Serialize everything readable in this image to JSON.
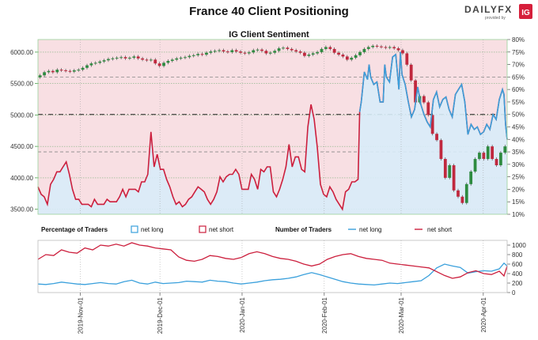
{
  "title": "France 40 Client Positioning",
  "brand": {
    "name": "DAILYFX",
    "tagline": "provided by",
    "ig": "IG"
  },
  "chart_data": {
    "type": "line",
    "subtitle": "IG Client Sentiment",
    "price_axis": {
      "ticks": [
        "6000.00",
        "5500.00",
        "5000.00",
        "4500.00",
        "4000.00",
        "3500.00"
      ],
      "ylim": [
        3420,
        6200
      ]
    },
    "pct_axis": {
      "ticks": [
        "80%",
        "75%",
        "70%",
        "65%",
        "60%",
        "55%",
        "50%",
        "45%",
        "40%",
        "35%",
        "30%",
        "25%",
        "20%",
        "15%",
        "10%"
      ],
      "ylim": [
        10,
        80
      ]
    },
    "date_ticks": [
      "2019-Nov-01",
      "2019-Dec-01",
      "2020-Jan-01",
      "2020-Feb-01",
      "2020-Mar-01",
      "2020-Apr-01"
    ],
    "x_range": [
      "2019-Oct-16",
      "2020-Apr-10"
    ],
    "candles_close": [
      5630,
      5680,
      5700,
      5680,
      5720,
      5710,
      5700,
      5690,
      5710,
      5720,
      5750,
      5790,
      5820,
      5830,
      5850,
      5870,
      5890,
      5900,
      5910,
      5920,
      5900,
      5910,
      5930,
      5900,
      5880,
      5870,
      5880,
      5820,
      5780,
      5830,
      5860,
      5880,
      5900,
      5910,
      5920,
      5940,
      5950,
      5970,
      5960,
      5990,
      6010,
      6020,
      6030,
      6010,
      6000,
      6030,
      6010,
      5990,
      5980,
      5995,
      6030,
      6040,
      6020,
      5980,
      5990,
      6020,
      6060,
      6070,
      6050,
      6030,
      6010,
      5990,
      5940,
      5960,
      5980,
      6000,
      6050,
      6080,
      6050,
      5990,
      5960,
      5930,
      5880,
      5910,
      5950,
      6000,
      6050,
      6080,
      6100,
      6090,
      6080,
      6070,
      6080,
      6060,
      6030,
      5980,
      5800,
      5550,
      5200,
      5300,
      5200,
      5000,
      4700,
      4600,
      4300,
      4000,
      4200,
      3800,
      3700,
      3600,
      3900,
      4100,
      4300,
      4400,
      4300,
      4500,
      4300,
      4200,
      4400,
      4500
    ],
    "sentiment_pct_long": [
      [
        0,
        21
      ],
      [
        2,
        18
      ],
      [
        4,
        17
      ],
      [
        6,
        14
      ],
      [
        8,
        22
      ],
      [
        10,
        24
      ],
      [
        12,
        27
      ],
      [
        14,
        27
      ],
      [
        16,
        29
      ],
      [
        18,
        31
      ],
      [
        20,
        26
      ],
      [
        22,
        20
      ],
      [
        24,
        16
      ],
      [
        26,
        16
      ],
      [
        28,
        14
      ],
      [
        30,
        14
      ],
      [
        32,
        14
      ],
      [
        34,
        13
      ],
      [
        36,
        16
      ],
      [
        38,
        14
      ],
      [
        40,
        14
      ],
      [
        42,
        14
      ],
      [
        44,
        16
      ],
      [
        46,
        15
      ],
      [
        48,
        15
      ],
      [
        50,
        15
      ],
      [
        52,
        17
      ],
      [
        54,
        20
      ],
      [
        56,
        17
      ],
      [
        58,
        20
      ],
      [
        60,
        20
      ],
      [
        62,
        20
      ],
      [
        64,
        19
      ],
      [
        66,
        23
      ],
      [
        68,
        23
      ],
      [
        70,
        26
      ],
      [
        72,
        43
      ],
      [
        74,
        29
      ],
      [
        76,
        34
      ],
      [
        78,
        28
      ],
      [
        80,
        28
      ],
      [
        82,
        24
      ],
      [
        84,
        21
      ],
      [
        86,
        17
      ],
      [
        88,
        14
      ],
      [
        90,
        15
      ],
      [
        92,
        13
      ],
      [
        94,
        14
      ],
      [
        96,
        16
      ],
      [
        98,
        17
      ],
      [
        100,
        19
      ],
      [
        102,
        21
      ],
      [
        104,
        20
      ],
      [
        106,
        19
      ],
      [
        108,
        16
      ],
      [
        110,
        14
      ],
      [
        112,
        16
      ],
      [
        114,
        19
      ],
      [
        116,
        25
      ],
      [
        118,
        23
      ],
      [
        120,
        25
      ],
      [
        122,
        26
      ],
      [
        124,
        26
      ],
      [
        126,
        28
      ],
      [
        128,
        26
      ],
      [
        130,
        20
      ],
      [
        132,
        20
      ],
      [
        134,
        20
      ],
      [
        136,
        26
      ],
      [
        138,
        24
      ],
      [
        140,
        20
      ],
      [
        142,
        28
      ],
      [
        144,
        27
      ],
      [
        146,
        29
      ],
      [
        148,
        29
      ],
      [
        150,
        19
      ],
      [
        152,
        17
      ],
      [
        154,
        20
      ],
      [
        156,
        24
      ],
      [
        158,
        29
      ],
      [
        160,
        38
      ],
      [
        162,
        29
      ],
      [
        164,
        33
      ],
      [
        166,
        33
      ],
      [
        168,
        28
      ],
      [
        170,
        27
      ],
      [
        172,
        45
      ],
      [
        174,
        54
      ],
      [
        176,
        48
      ],
      [
        178,
        37
      ],
      [
        180,
        22
      ],
      [
        182,
        18
      ],
      [
        184,
        17
      ],
      [
        186,
        21
      ],
      [
        188,
        19
      ],
      [
        190,
        16
      ],
      [
        192,
        14
      ],
      [
        194,
        12
      ],
      [
        196,
        19
      ],
      [
        198,
        20
      ],
      [
        200,
        23
      ],
      [
        202,
        23
      ],
      [
        204,
        24
      ],
      [
        205,
        51
      ],
      [
        206,
        55
      ],
      [
        208,
        67
      ],
      [
        210,
        64
      ],
      [
        211,
        70
      ],
      [
        212,
        65
      ],
      [
        214,
        62
      ],
      [
        216,
        63
      ],
      [
        218,
        55
      ],
      [
        220,
        55
      ],
      [
        221,
        70
      ],
      [
        222,
        65
      ],
      [
        224,
        63
      ],
      [
        226,
        73
      ],
      [
        228,
        74
      ],
      [
        230,
        60
      ],
      [
        231,
        75
      ],
      [
        232,
        66
      ],
      [
        234,
        62
      ],
      [
        236,
        55
      ],
      [
        238,
        49
      ],
      [
        240,
        52
      ],
      [
        242,
        61
      ],
      [
        244,
        54
      ],
      [
        246,
        50
      ],
      [
        248,
        47
      ],
      [
        250,
        45
      ],
      [
        252,
        56
      ],
      [
        254,
        59
      ],
      [
        256,
        53
      ],
      [
        258,
        56
      ],
      [
        260,
        57
      ],
      [
        262,
        52
      ],
      [
        264,
        49
      ],
      [
        266,
        58
      ],
      [
        268,
        60
      ],
      [
        270,
        62
      ],
      [
        272,
        55
      ],
      [
        274,
        42
      ],
      [
        276,
        46
      ],
      [
        278,
        44
      ],
      [
        280,
        45
      ],
      [
        282,
        42
      ],
      [
        284,
        43
      ],
      [
        286,
        46
      ],
      [
        288,
        44
      ],
      [
        290,
        50
      ],
      [
        292,
        48
      ],
      [
        294,
        56
      ],
      [
        296,
        60
      ],
      [
        297,
        58
      ],
      [
        298,
        46
      ],
      [
        299,
        40
      ]
    ],
    "legend_pct": {
      "label": "Percentage of Traders",
      "long": "net long",
      "short": "net short"
    },
    "legend_num": {
      "label": "Number of Traders",
      "long": "net long",
      "short": "net short"
    },
    "traders_axis": {
      "ticks": [
        "1000",
        "800",
        "600",
        "400",
        "200",
        "0"
      ],
      "ylim": [
        0,
        1100
      ]
    },
    "traders_long": [
      [
        0,
        180
      ],
      [
        10,
        170
      ],
      [
        20,
        190
      ],
      [
        30,
        220
      ],
      [
        40,
        200
      ],
      [
        50,
        180
      ],
      [
        60,
        170
      ],
      [
        70,
        190
      ],
      [
        80,
        210
      ],
      [
        90,
        190
      ],
      [
        100,
        180
      ],
      [
        110,
        230
      ],
      [
        120,
        260
      ],
      [
        130,
        200
      ],
      [
        140,
        180
      ],
      [
        150,
        220
      ],
      [
        160,
        190
      ],
      [
        170,
        200
      ],
      [
        180,
        210
      ],
      [
        190,
        240
      ],
      [
        200,
        230
      ],
      [
        210,
        220
      ],
      [
        220,
        260
      ],
      [
        230,
        240
      ],
      [
        240,
        230
      ],
      [
        250,
        200
      ],
      [
        260,
        180
      ],
      [
        270,
        200
      ],
      [
        280,
        220
      ],
      [
        290,
        250
      ],
      [
        300,
        270
      ],
      [
        310,
        280
      ],
      [
        320,
        300
      ],
      [
        330,
        330
      ],
      [
        340,
        380
      ],
      [
        350,
        420
      ],
      [
        360,
        380
      ],
      [
        370,
        330
      ],
      [
        380,
        280
      ],
      [
        390,
        230
      ],
      [
        400,
        200
      ],
      [
        410,
        180
      ],
      [
        420,
        170
      ],
      [
        430,
        160
      ],
      [
        440,
        180
      ],
      [
        450,
        200
      ],
      [
        460,
        190
      ],
      [
        470,
        210
      ],
      [
        480,
        230
      ],
      [
        490,
        250
      ],
      [
        500,
        360
      ],
      [
        510,
        520
      ],
      [
        520,
        600
      ],
      [
        530,
        560
      ],
      [
        540,
        530
      ],
      [
        550,
        410
      ],
      [
        560,
        440
      ],
      [
        570,
        460
      ],
      [
        580,
        450
      ],
      [
        590,
        500
      ],
      [
        596,
        620
      ],
      [
        600,
        560
      ]
    ],
    "traders_short": [
      [
        0,
        700
      ],
      [
        10,
        800
      ],
      [
        20,
        780
      ],
      [
        30,
        900
      ],
      [
        40,
        850
      ],
      [
        50,
        830
      ],
      [
        60,
        940
      ],
      [
        70,
        900
      ],
      [
        80,
        1000
      ],
      [
        90,
        980
      ],
      [
        100,
        1020
      ],
      [
        110,
        980
      ],
      [
        120,
        1050
      ],
      [
        130,
        1000
      ],
      [
        140,
        980
      ],
      [
        150,
        940
      ],
      [
        160,
        920
      ],
      [
        170,
        900
      ],
      [
        180,
        750
      ],
      [
        190,
        680
      ],
      [
        200,
        660
      ],
      [
        210,
        700
      ],
      [
        220,
        780
      ],
      [
        230,
        760
      ],
      [
        240,
        720
      ],
      [
        250,
        700
      ],
      [
        260,
        740
      ],
      [
        270,
        820
      ],
      [
        280,
        860
      ],
      [
        290,
        820
      ],
      [
        300,
        760
      ],
      [
        310,
        720
      ],
      [
        320,
        700
      ],
      [
        330,
        660
      ],
      [
        340,
        600
      ],
      [
        350,
        560
      ],
      [
        360,
        600
      ],
      [
        370,
        700
      ],
      [
        380,
        760
      ],
      [
        390,
        800
      ],
      [
        400,
        820
      ],
      [
        410,
        760
      ],
      [
        420,
        720
      ],
      [
        430,
        700
      ],
      [
        440,
        680
      ],
      [
        450,
        620
      ],
      [
        460,
        600
      ],
      [
        470,
        580
      ],
      [
        480,
        560
      ],
      [
        490,
        540
      ],
      [
        500,
        520
      ],
      [
        510,
        440
      ],
      [
        520,
        360
      ],
      [
        530,
        300
      ],
      [
        540,
        330
      ],
      [
        550,
        420
      ],
      [
        560,
        460
      ],
      [
        570,
        400
      ],
      [
        580,
        380
      ],
      [
        590,
        450
      ],
      [
        596,
        350
      ],
      [
        600,
        560
      ]
    ]
  },
  "colors": {
    "long": "#3aa0dc",
    "short": "#cc1f3d",
    "price_up": "#2e8b40",
    "price_down": "#c0283e",
    "pink_bg": "#f8dfe3",
    "blue_fill": "#d8ecf8"
  }
}
